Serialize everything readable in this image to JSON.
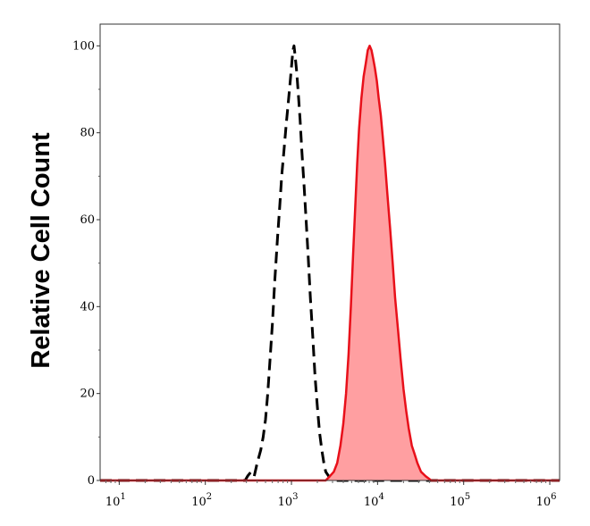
{
  "chart_data": {
    "type": "area",
    "xscale": "log",
    "xlim": [
      6,
      1300000
    ],
    "ylim": [
      0,
      105
    ],
    "ylabel": "Relative Cell Count",
    "xlabel": "",
    "grid": false,
    "legend": "none",
    "x_ticks": [
      {
        "value": 10,
        "base": "10",
        "exp": "1"
      },
      {
        "value": 100,
        "base": "10",
        "exp": "2"
      },
      {
        "value": 1000,
        "base": "10",
        "exp": "3"
      },
      {
        "value": 10000,
        "base": "10",
        "exp": "4"
      },
      {
        "value": 100000,
        "base": "10",
        "exp": "5"
      },
      {
        "value": 1000000,
        "base": "10",
        "exp": "6"
      }
    ],
    "y_ticks": [
      {
        "value": 0,
        "label": "0"
      },
      {
        "value": 20,
        "label": "20"
      },
      {
        "value": 40,
        "label": "40"
      },
      {
        "value": 60,
        "label": "60"
      },
      {
        "value": 80,
        "label": "80"
      },
      {
        "value": 100,
        "label": "100"
      }
    ],
    "series": [
      {
        "style": "dashed-outline",
        "color": "#000000",
        "points": [
          [
            6,
            0
          ],
          [
            290,
            0
          ],
          [
            310,
            1
          ],
          [
            340,
            2
          ],
          [
            370,
            1
          ],
          [
            400,
            4
          ],
          [
            440,
            7
          ],
          [
            470,
            10
          ],
          [
            500,
            14
          ],
          [
            530,
            20
          ],
          [
            560,
            27
          ],
          [
            600,
            36
          ],
          [
            640,
            46
          ],
          [
            690,
            56
          ],
          [
            730,
            63
          ],
          [
            770,
            70
          ],
          [
            820,
            76
          ],
          [
            870,
            82
          ],
          [
            920,
            87
          ],
          [
            960,
            91
          ],
          [
            1000,
            95
          ],
          [
            1040,
            99
          ],
          [
            1070,
            100
          ],
          [
            1100,
            98
          ],
          [
            1150,
            94
          ],
          [
            1200,
            89
          ],
          [
            1260,
            83
          ],
          [
            1320,
            76
          ],
          [
            1400,
            68
          ],
          [
            1480,
            60
          ],
          [
            1570,
            51
          ],
          [
            1660,
            42
          ],
          [
            1770,
            33
          ],
          [
            1880,
            24
          ],
          [
            2000,
            17
          ],
          [
            2120,
            11
          ],
          [
            2250,
            7
          ],
          [
            2380,
            4
          ],
          [
            2500,
            2
          ],
          [
            2700,
            1
          ],
          [
            3000,
            0
          ],
          [
            1300000,
            0
          ]
        ]
      },
      {
        "style": "filled",
        "color": "#e8101a",
        "fill": "#ff9fa1",
        "points": [
          [
            6,
            0
          ],
          [
            2500,
            0
          ],
          [
            2800,
            1
          ],
          [
            3100,
            2
          ],
          [
            3400,
            4
          ],
          [
            3700,
            8
          ],
          [
            4000,
            13
          ],
          [
            4300,
            20
          ],
          [
            4600,
            29
          ],
          [
            4900,
            40
          ],
          [
            5200,
            52
          ],
          [
            5500,
            63
          ],
          [
            5800,
            73
          ],
          [
            6100,
            81
          ],
          [
            6500,
            88
          ],
          [
            6900,
            93
          ],
          [
            7300,
            96
          ],
          [
            7700,
            99
          ],
          [
            8100,
            100
          ],
          [
            8500,
            99
          ],
          [
            8900,
            97
          ],
          [
            9300,
            95
          ],
          [
            9800,
            92
          ],
          [
            10300,
            88
          ],
          [
            10900,
            84
          ],
          [
            11500,
            79
          ],
          [
            12200,
            73
          ],
          [
            13000,
            66
          ],
          [
            14000,
            58
          ],
          [
            15000,
            50
          ],
          [
            16000,
            42
          ],
          [
            17200,
            35
          ],
          [
            18500,
            28
          ],
          [
            20000,
            21
          ],
          [
            21500,
            16
          ],
          [
            23000,
            12
          ],
          [
            25000,
            8
          ],
          [
            27000,
            6
          ],
          [
            29000,
            4
          ],
          [
            32000,
            2
          ],
          [
            36000,
            1
          ],
          [
            42000,
            0
          ],
          [
            1300000,
            0
          ]
        ]
      }
    ]
  }
}
